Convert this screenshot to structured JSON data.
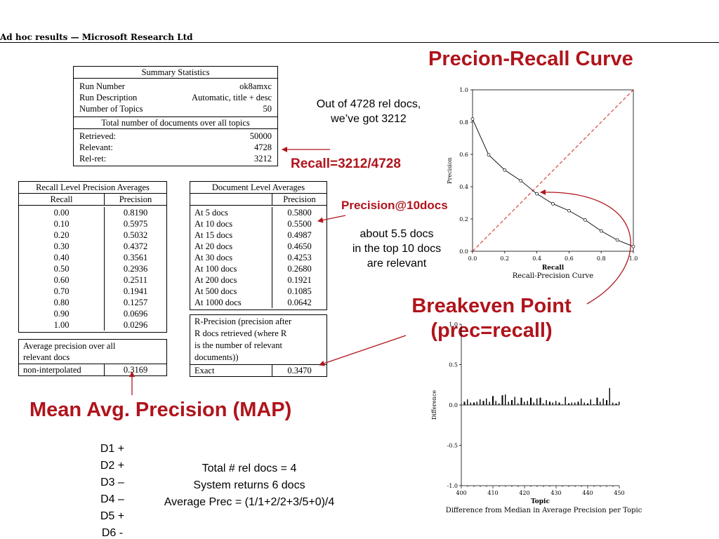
{
  "header": {
    "text": "Ad hoc results — Microsoft Research Ltd"
  },
  "titles": {
    "pr_curve": "Precion-Recall Curve",
    "breakeven_line1": "Breakeven Point",
    "breakeven_line2": "(prec=recall)",
    "map": "Mean Avg. Precision (MAP)"
  },
  "notes": {
    "rel_docs_line1": "Out of 4728 rel docs,",
    "rel_docs_line2": "we’ve got 3212",
    "recall_label": "Recall=3212/4728",
    "precision10_label": "Precision@10docs",
    "about_line1": "about 5.5 docs",
    "about_line2": "in the top 10 docs",
    "about_line3": "are relevant",
    "total_rel": "Total # rel docs = 4",
    "system_returns": "System returns 6 docs",
    "avg_prec": "Average Prec = (1/1+2/2+3/5+0)/4"
  },
  "example_docs": [
    "D1 +",
    "D2 +",
    "D3 –",
    "D4 –",
    "D5 +",
    "D6 -"
  ],
  "summary": {
    "caption": "Summary Statistics",
    "rows": [
      {
        "label": "Run Number",
        "value": "ok8amxc"
      },
      {
        "label": "Run Description",
        "value": "Automatic, title + desc"
      },
      {
        "label": "Number of Topics",
        "value": "50"
      }
    ],
    "totals_caption": "Total number of documents over all topics",
    "totals": [
      {
        "label": "Retrieved:",
        "value": "50000"
      },
      {
        "label": "Relevant:",
        "value": "4728"
      },
      {
        "label": "Rel-ret:",
        "value": "3212"
      }
    ]
  },
  "recall_table": {
    "caption": "Recall Level Precision Averages",
    "col1": "Recall",
    "col2": "Precision",
    "rows": [
      {
        "recall": "0.00",
        "precision": "0.8190"
      },
      {
        "recall": "0.10",
        "precision": "0.5975"
      },
      {
        "recall": "0.20",
        "precision": "0.5032"
      },
      {
        "recall": "0.30",
        "precision": "0.4372"
      },
      {
        "recall": "0.40",
        "precision": "0.3561"
      },
      {
        "recall": "0.50",
        "precision": "0.2936"
      },
      {
        "recall": "0.60",
        "precision": "0.2511"
      },
      {
        "recall": "0.70",
        "precision": "0.1941"
      },
      {
        "recall": "0.80",
        "precision": "0.1257"
      },
      {
        "recall": "0.90",
        "precision": "0.0696"
      },
      {
        "recall": "1.00",
        "precision": "0.0296"
      }
    ],
    "avg_caption_line1": "Average precision over all",
    "avg_caption_line2": "relevant docs",
    "noninterp_label": "non-interpolated",
    "noninterp_value": "0.3169"
  },
  "doc_table": {
    "caption": "Document Level Averages",
    "col2": "Precision",
    "rows": [
      {
        "label": "At 5 docs",
        "value": "0.5800"
      },
      {
        "label": "At 10 docs",
        "value": "0.5500"
      },
      {
        "label": "At 15 docs",
        "value": "0.4987"
      },
      {
        "label": "At 20 docs",
        "value": "0.4650"
      },
      {
        "label": "At 30 docs",
        "value": "0.4253"
      },
      {
        "label": "At 100 docs",
        "value": "0.2680"
      },
      {
        "label": "At 200 docs",
        "value": "0.1921"
      },
      {
        "label": "At 500 docs",
        "value": "0.1085"
      },
      {
        "label": "At 1000 docs",
        "value": "0.0642"
      }
    ],
    "rprec_line1": "R-Precision (precision after",
    "rprec_line2": "R docs retrieved (where R",
    "rprec_line3": "is the number of relevant",
    "rprec_line4": "documents))",
    "exact_label": "Exact",
    "exact_value": "0.3470"
  },
  "chart_data": [
    {
      "type": "line",
      "title": "Recall-Precision Curve",
      "xlabel": "Recall",
      "ylabel": "Precision",
      "xlim": [
        0,
        1
      ],
      "ylim": [
        0,
        1
      ],
      "x_ticks": [
        "0.0",
        "0.2",
        "0.4",
        "0.6",
        "0.8",
        "1.0"
      ],
      "y_ticks": [
        "0.0",
        "0.2",
        "0.4",
        "0.6",
        "0.8",
        "1.0"
      ],
      "x": [
        0.0,
        0.1,
        0.2,
        0.3,
        0.4,
        0.5,
        0.6,
        0.7,
        0.8,
        0.9,
        1.0
      ],
      "series": [
        {
          "values": [
            0.819,
            0.5975,
            0.5032,
            0.4372,
            0.3561,
            0.2936,
            0.2511,
            0.1941,
            0.1257,
            0.0696,
            0.0296
          ]
        }
      ],
      "reference_line": "diagonal y = x (red dashed)",
      "grid": false
    },
    {
      "type": "bar",
      "title": "Difference from Median in Average Precision per Topic",
      "xlabel": "Topic",
      "ylabel": "Difference",
      "xlim": [
        400,
        450
      ],
      "ylim": [
        -1.0,
        1.0
      ],
      "x_ticks": [
        "400",
        "410",
        "420",
        "430",
        "440",
        "450"
      ],
      "y_ticks": [
        "-1.0",
        "-0.5",
        "0.0",
        "0.5",
        "1.0"
      ],
      "categories": [
        401,
        402,
        403,
        404,
        405,
        406,
        407,
        408,
        409,
        410,
        411,
        412,
        413,
        414,
        415,
        416,
        417,
        418,
        419,
        420,
        421,
        422,
        423,
        424,
        425,
        426,
        427,
        428,
        429,
        430,
        431,
        432,
        433,
        434,
        435,
        436,
        437,
        438,
        439,
        440,
        441,
        442,
        443,
        444,
        445,
        446,
        447,
        448,
        449,
        450
      ],
      "values": [
        0.04,
        0.07,
        0.03,
        0.03,
        0.04,
        0.07,
        0.05,
        0.08,
        0.04,
        0.11,
        0.05,
        0.02,
        0.12,
        0.13,
        0.04,
        0.06,
        0.1,
        0.02,
        0.09,
        0.04,
        0.05,
        0.09,
        0.03,
        0.08,
        0.09,
        0.02,
        0.06,
        0.04,
        0.03,
        0.05,
        0.03,
        0.01,
        0.1,
        0.02,
        0.03,
        0.03,
        0.04,
        0.08,
        0.03,
        0.02,
        0.07,
        0.01,
        0.09,
        0.04,
        0.08,
        0.06,
        0.21,
        0.03,
        0.02,
        0.04
      ],
      "grid": false
    }
  ]
}
